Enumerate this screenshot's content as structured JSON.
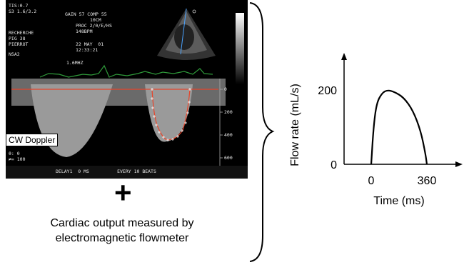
{
  "echo": {
    "header_left": [
      "TIS:0.7",
      "S3 1.6/3.2"
    ],
    "header_gain": [
      "GAIN 57 COMP 55",
      "10CM",
      "PROC 2/0/E/HS",
      "148BPM"
    ],
    "header_site": [
      "RECHERCHE",
      "PIG 38",
      "PIERROT"
    ],
    "header_date": [
      "22 MAY  01",
      "12:33:21"
    ],
    "probe": "NSA2",
    "freq": "1.6MHZ",
    "scale_ticks": [
      "0",
      "200",
      "400",
      "600"
    ],
    "params": [
      "θ: 0",
      "≠= 100"
    ],
    "footer": "DELAY1  0 MS          EVERY 10 BEATS",
    "colors": {
      "ecg": "#2f9a3a",
      "baseline": "#e8452a",
      "trace": "#e8452a"
    }
  },
  "cw_label": "CW Doppler",
  "plus_symbol": "+",
  "caption": [
    "Cardiac output measured by",
    "electromagnetic flowmeter"
  ],
  "chart_data": {
    "type": "line",
    "xlabel": "Time (ms)",
    "ylabel": "Flow rate (mL/s)",
    "x_ticks": [
      0,
      360
    ],
    "y_ticks": [
      0,
      200
    ],
    "xlim": [
      -80,
      520
    ],
    "ylim": [
      0,
      280
    ],
    "series": [
      {
        "values": [
          [
            0,
            0
          ],
          [
            15,
            100
          ],
          [
            35,
            165
          ],
          [
            70,
            192
          ],
          [
            105,
            200
          ],
          [
            150,
            195
          ],
          [
            210,
            180
          ],
          [
            270,
            145
          ],
          [
            320,
            90
          ],
          [
            350,
            30
          ],
          [
            360,
            0
          ]
        ]
      }
    ]
  }
}
